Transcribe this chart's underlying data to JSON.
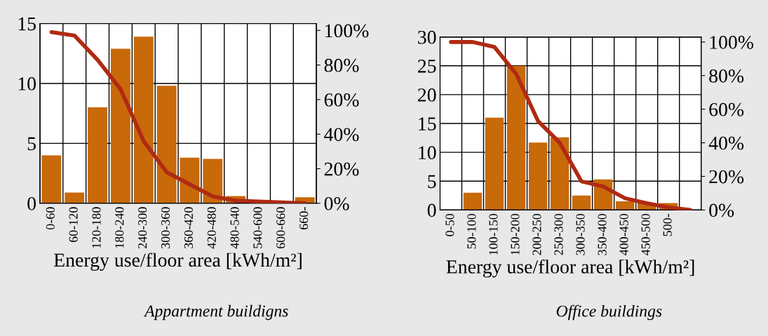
{
  "chart_data": [
    {
      "type": "bar",
      "xlabel": "Energy use/floor area [kWh/m²]",
      "annotations": [
        "Appartment buildigns"
      ],
      "categories": [
        "0-60",
        "60-120",
        "120-180",
        "180-240",
        "240-300",
        "300-360",
        "360-420",
        "420-480",
        "480-540",
        "540-600",
        "600-660",
        "660-"
      ],
      "series": [
        {
          "color": "#c8690a",
          "values": [
            4.0,
            0.9,
            8.0,
            12.9,
            13.9,
            9.8,
            3.8,
            3.7,
            0.6,
            0,
            0,
            0.5
          ]
        },
        {
          "type": "line",
          "axis": "y2",
          "color": "#b02a12",
          "values": [
            99,
            97,
            83,
            66,
            36,
            18,
            11,
            4,
            1.5,
            1,
            0.5,
            0
          ]
        }
      ],
      "ylim": [
        0,
        15
      ],
      "yticks": [
        0,
        5,
        10,
        15
      ],
      "y2lim": [
        0,
        104
      ],
      "y2ticks": [
        {
          "value": 0,
          "label": "0%"
        },
        {
          "value": 20,
          "label": "20%"
        },
        {
          "value": 40,
          "label": "40%"
        },
        {
          "value": 60,
          "label": "60%"
        },
        {
          "value": 80,
          "label": "80%"
        },
        {
          "value": 100,
          "label": "100%"
        }
      ],
      "grid": true,
      "marker": "none",
      "line_style": "solid"
    },
    {
      "type": "bar",
      "xlabel": "Energy use/floor area [kWh/m²]",
      "annotations": [
        "Office buildings"
      ],
      "categories": [
        "0-50",
        "50-100",
        "100-150",
        "150-200",
        "200-250",
        "250-300",
        "300-350",
        "350-400",
        "400-450",
        "450-500",
        "500-",
        null
      ],
      "series": [
        {
          "color": "#c8690a",
          "values": [
            0,
            3.0,
            16.0,
            25.0,
            11.7,
            12.6,
            2.5,
            5.3,
            1.5,
            1.2,
            1.2,
            0
          ]
        },
        {
          "type": "line",
          "axis": "y2",
          "color": "#b02a12",
          "values": [
            100,
            100,
            97,
            81,
            53,
            40,
            17,
            14,
            7,
            4,
            1.5,
            0
          ]
        }
      ],
      "ylim": [
        0,
        30
      ],
      "yticks": [
        0,
        5,
        10,
        15,
        20,
        25,
        30
      ],
      "y2lim": [
        0,
        103
      ],
      "y2ticks": [
        {
          "value": 0,
          "label": "0%"
        },
        {
          "value": 20,
          "label": "20%"
        },
        {
          "value": 40,
          "label": "40%"
        },
        {
          "value": 60,
          "label": "60%"
        },
        {
          "value": 80,
          "label": "80%"
        },
        {
          "value": 100,
          "label": "100%"
        }
      ],
      "grid": true,
      "marker": "none",
      "line_style": "solid"
    }
  ]
}
